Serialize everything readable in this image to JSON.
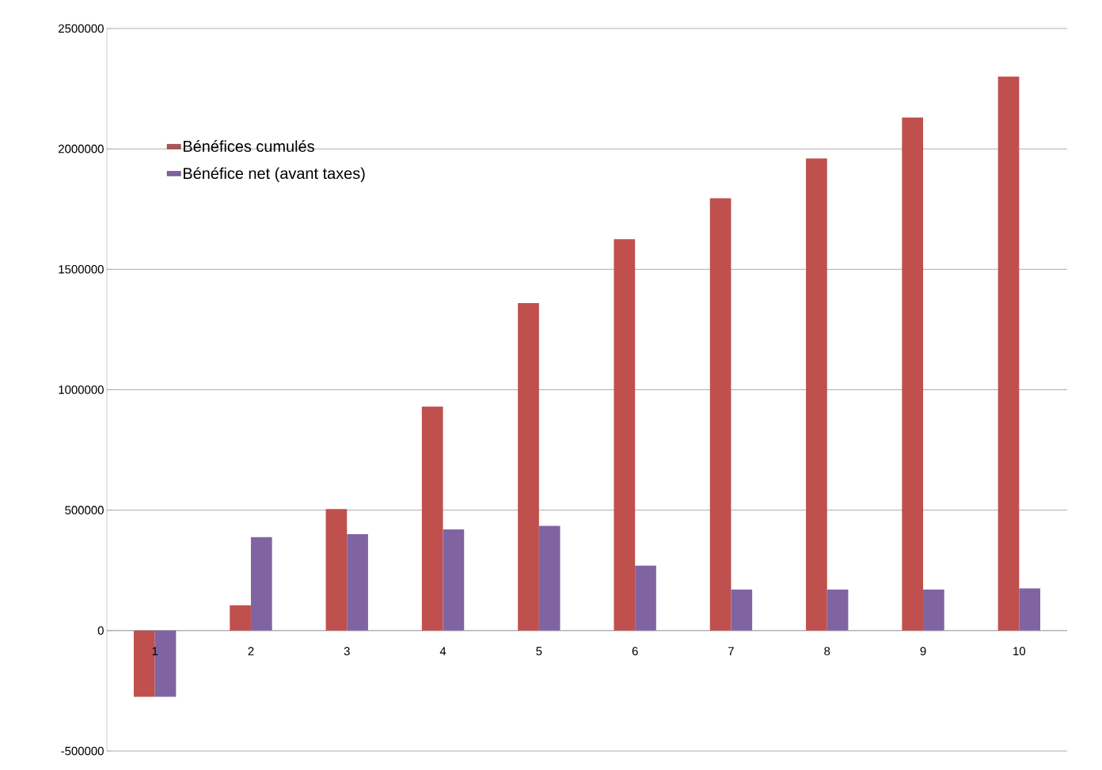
{
  "chart_data": {
    "type": "bar",
    "categories": [
      "1",
      "2",
      "3",
      "4",
      "5",
      "6",
      "7",
      "8",
      "9",
      "10"
    ],
    "series": [
      {
        "name": "Bénéfices cumulés",
        "color": "#c0504d",
        "values": [
          -275000,
          105000,
          505000,
          930000,
          1360000,
          1625000,
          1795000,
          1960000,
          2130000,
          2300000
        ]
      },
      {
        "name": "Bénéfice net (avant taxes)",
        "color": "#8064a2",
        "values": [
          -275000,
          388000,
          400000,
          420000,
          435000,
          270000,
          170000,
          170000,
          170000,
          175000
        ]
      }
    ],
    "ylim": [
      -500000,
      2500000
    ],
    "yticks": [
      -500000,
      0,
      500000,
      1000000,
      1500000,
      2000000,
      2500000
    ],
    "grid": "y",
    "legend": "top left"
  }
}
